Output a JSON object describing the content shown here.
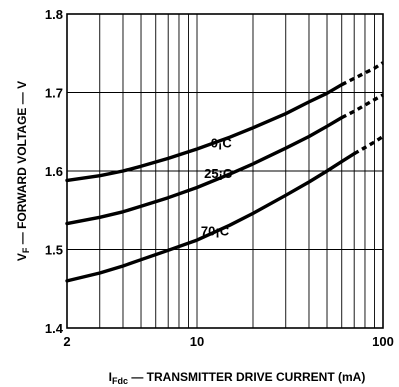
{
  "chart_data": {
    "type": "line",
    "x_scale": "log",
    "xlim": [
      2,
      100
    ],
    "ylim": [
      1.4,
      1.8
    ],
    "grid": true,
    "x_ticks": [
      2,
      10,
      100
    ],
    "x_tick_labels": [
      "2",
      "10",
      "100"
    ],
    "y_ticks": [
      1.4,
      1.5,
      1.6,
      1.7,
      1.8
    ],
    "y_tick_labels": [
      "1.4",
      "1.5",
      "1.6",
      "1.7",
      "1.8"
    ],
    "xlabel_main": "I",
    "xlabel_sub": "Fdc",
    "xlabel_rest": " — TRANSMITTER DRIVE CURRENT (mA)",
    "ylabel_main": "V",
    "ylabel_sub": "F",
    "ylabel_rest": " — FORWARD VOLTAGE — V",
    "series": [
      {
        "name": "0¡C",
        "label_at": [
          13.5,
          1.63
        ],
        "x": [
          2,
          3,
          4,
          5,
          7,
          10,
          15,
          20,
          30,
          40,
          50,
          60
        ],
        "y": [
          1.588,
          1.594,
          1.6,
          1.606,
          1.616,
          1.628,
          1.643,
          1.655,
          1.673,
          1.688,
          1.699,
          1.71
        ],
        "dashed_x": [
          60,
          70,
          80,
          90,
          100
        ],
        "dashed_y": [
          1.71,
          1.718,
          1.725,
          1.731,
          1.738
        ]
      },
      {
        "name": "25¡C",
        "label_at": [
          13,
          1.591
        ],
        "x": [
          2,
          3,
          4,
          5,
          7,
          10,
          15,
          20,
          30,
          40,
          50,
          60
        ],
        "y": [
          1.533,
          1.541,
          1.548,
          1.555,
          1.566,
          1.579,
          1.596,
          1.609,
          1.629,
          1.644,
          1.657,
          1.668
        ],
        "dashed_x": [
          60,
          70,
          80,
          90,
          100
        ],
        "dashed_y": [
          1.668,
          1.676,
          1.684,
          1.691,
          1.697
        ]
      },
      {
        "name": "70¡C",
        "label_at": [
          12.5,
          1.518
        ],
        "x": [
          2,
          3,
          4,
          5,
          7,
          10,
          15,
          20,
          30,
          40,
          50,
          60,
          70
        ],
        "y": [
          1.46,
          1.47,
          1.479,
          1.487,
          1.499,
          1.512,
          1.531,
          1.546,
          1.569,
          1.586,
          1.6,
          1.612,
          1.622
        ],
        "dashed_x": [
          70,
          80,
          90,
          100
        ],
        "dashed_y": [
          1.622,
          1.63,
          1.637,
          1.644
        ]
      }
    ]
  }
}
